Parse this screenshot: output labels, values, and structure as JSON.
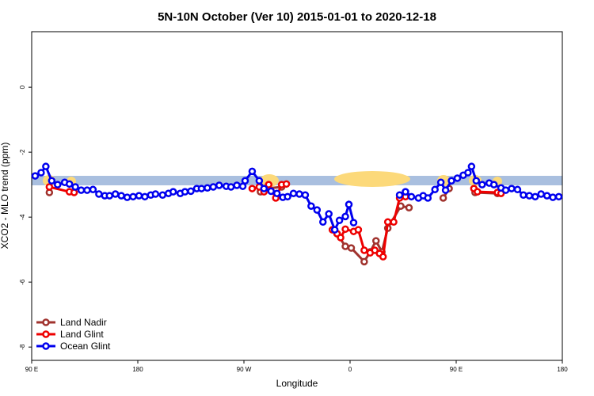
{
  "chart_data": {
    "type": "line",
    "title": "5N-10N October (Ver 10)   2015-01-01 to 2020-12-18",
    "xlabel": "Longitude",
    "ylabel": "XCO2 - MLO trend (ppm)",
    "xlim": [
      90,
      540
    ],
    "xticks": [
      {
        "value": 90,
        "label": "90 E"
      },
      {
        "value": 180,
        "label": "180"
      },
      {
        "value": 270,
        "label": "90 W"
      },
      {
        "value": 360,
        "label": "0"
      },
      {
        "value": 450,
        "label": "90 E"
      },
      {
        "value": 540,
        "label": "180"
      }
    ],
    "ylim": [
      -8.41,
      1.71
    ],
    "yticks": [
      0,
      -2,
      -4,
      -6,
      -8
    ],
    "legend": "bottom-left",
    "series": [
      {
        "name": "Land Nadir",
        "color": "#a0332e",
        "x": [
          105,
          null,
          284,
          289,
          302,
          null,
          349,
          356,
          361,
          372,
          377,
          382,
          387,
          392,
          403,
          410,
          null,
          439,
          444,
          null,
          466,
          485
        ],
        "values": [
          -3.24,
          null,
          -3.22,
          -3.12,
          -3.07,
          null,
          -4.51,
          -4.9,
          -4.95,
          -5.37,
          -5.07,
          -4.73,
          -5.07,
          -4.34,
          -3.66,
          -3.71,
          null,
          -3.41,
          -3.12,
          null,
          -3.24,
          -3.27
        ]
      },
      {
        "name": "Land Glint",
        "color": "#ee0000",
        "x": [
          105,
          122,
          126,
          null,
          277,
          283,
          287,
          291,
          297,
          302,
          306,
          null,
          345,
          349,
          352,
          356,
          363,
          367,
          372,
          377,
          381,
          385,
          388,
          392,
          397,
          402,
          407,
          null,
          465,
          468,
          485,
          488
        ],
        "values": [
          -3.07,
          -3.22,
          -3.24,
          null,
          -3.12,
          -3.07,
          -3.22,
          -3.0,
          -3.41,
          -3.0,
          -2.98,
          null,
          -4.39,
          -4.51,
          -4.63,
          -4.37,
          -4.44,
          -4.39,
          -5.02,
          -5.1,
          -5.02,
          -5.12,
          -5.22,
          -4.15,
          -4.15,
          -3.41,
          -3.37,
          null,
          -3.12,
          -3.22,
          -3.24,
          -3.27
        ]
      },
      {
        "name": "Ocean Glint",
        "color": "#0000ee",
        "x": [
          93,
          98,
          102,
          107,
          112,
          118,
          122,
          127,
          132,
          137,
          142,
          147,
          152,
          156,
          161,
          166,
          171,
          176,
          181,
          186,
          191,
          195,
          201,
          206,
          210,
          216,
          220,
          225,
          230,
          234,
          239,
          244,
          249,
          255,
          259,
          264,
          269,
          271,
          277,
          283,
          287,
          293,
          298,
          303,
          307,
          312,
          317,
          322,
          327,
          332,
          337,
          342,
          347,
          351,
          356,
          359,
          363,
          null,
          402,
          407,
          412,
          418,
          422,
          426,
          432,
          437,
          441,
          446,
          451,
          456,
          460,
          463,
          467,
          472,
          478,
          482,
          488,
          492,
          497,
          502,
          507,
          512,
          517,
          522,
          527,
          532,
          537
        ],
        "values": [
          -2.73,
          -2.63,
          -2.44,
          -2.88,
          -3.0,
          -2.93,
          -2.98,
          -3.07,
          -3.17,
          -3.17,
          -3.15,
          -3.29,
          -3.34,
          -3.34,
          -3.29,
          -3.34,
          -3.39,
          -3.37,
          -3.34,
          -3.37,
          -3.32,
          -3.29,
          -3.32,
          -3.27,
          -3.22,
          -3.27,
          -3.22,
          -3.2,
          -3.12,
          -3.12,
          -3.1,
          -3.07,
          -3.02,
          -3.05,
          -3.07,
          -3.02,
          -3.05,
          -2.88,
          -2.59,
          -2.88,
          -3.12,
          -3.2,
          -3.27,
          -3.39,
          -3.37,
          -3.27,
          -3.29,
          -3.32,
          -3.66,
          -3.78,
          -4.15,
          -3.9,
          -4.39,
          -4.1,
          -3.98,
          -3.61,
          -4.17,
          null,
          -3.32,
          -3.22,
          -3.37,
          -3.41,
          -3.34,
          -3.41,
          -3.15,
          -2.93,
          -3.17,
          -2.88,
          -2.8,
          -2.71,
          -2.63,
          -2.44,
          -2.88,
          -3.0,
          -2.95,
          -3.0,
          -3.1,
          -3.17,
          -3.12,
          -3.15,
          -3.32,
          -3.34,
          -3.37,
          -3.29,
          -3.34,
          -3.39,
          -3.37
        ]
      }
    ]
  }
}
